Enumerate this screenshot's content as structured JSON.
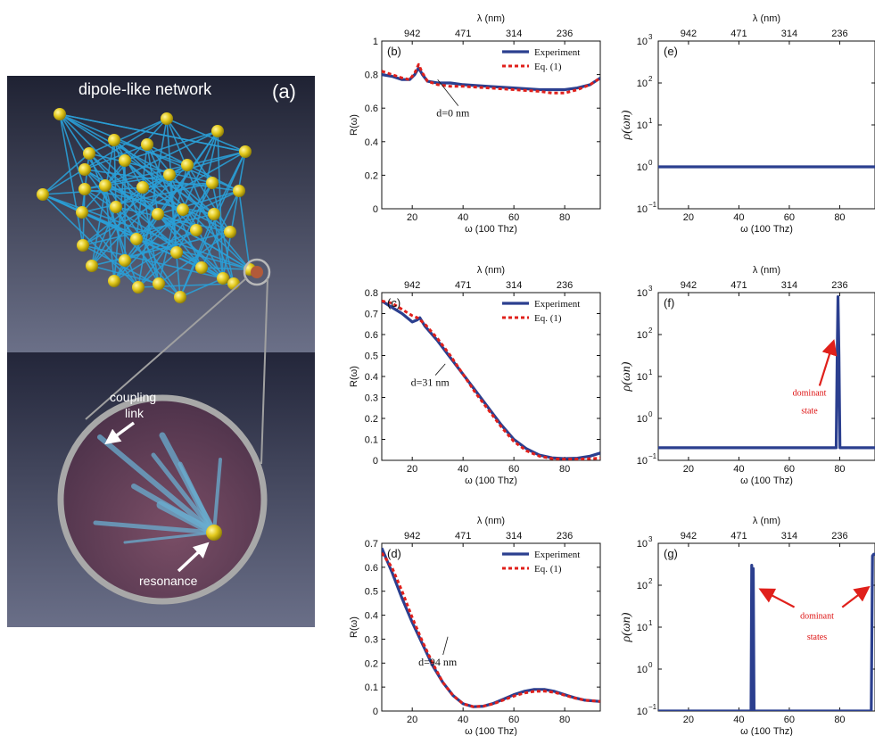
{
  "network_panel": {
    "title": "dipole-like network",
    "label": "(a)",
    "link_label_1": "coupling",
    "link_label_2": "link",
    "resonance_label": "resonance"
  },
  "colors": {
    "experiment": "#2b3f8f",
    "equation": "#e0201b",
    "arrow": "#e0201b",
    "node": "#d9c21a",
    "link": "#2a9fd6"
  },
  "chart_data": [
    {
      "id": "b",
      "type": "line",
      "panel_label": "(b)",
      "xlabel": "ω (100 Thz)",
      "ylabel": "R(ω)",
      "top_axis_label": "λ (nm)",
      "top_ticks": [
        {
          "x": 20,
          "label": "942"
        },
        {
          "x": 40,
          "label": "471"
        },
        {
          "x": 60,
          "label": "314"
        },
        {
          "x": 80,
          "label": "236"
        }
      ],
      "xlim": [
        8,
        94
      ],
      "ylim": [
        0,
        1
      ],
      "xticks": [
        20,
        40,
        60,
        80
      ],
      "yticks": [
        0,
        0.2,
        0.4,
        0.6,
        0.8,
        1
      ],
      "ytick_labels": [
        "0",
        "0.2",
        "0.4",
        "0.6",
        "0.8",
        "1"
      ],
      "legend": {
        "experiment": "Experiment",
        "equation": "Eq. (1)"
      },
      "annotation": {
        "text": "d=0 nm",
        "x": 36,
        "y": 0.55,
        "ax": 30,
        "ay": 0.77
      },
      "series": [
        {
          "name": "Experiment",
          "style": "solid",
          "x": [
            8,
            12,
            16,
            19,
            21,
            22.5,
            24,
            26,
            30,
            35,
            40,
            50,
            60,
            70,
            75,
            80,
            85,
            90,
            94
          ],
          "y": [
            0.8,
            0.79,
            0.77,
            0.77,
            0.8,
            0.84,
            0.8,
            0.76,
            0.75,
            0.75,
            0.74,
            0.73,
            0.72,
            0.71,
            0.71,
            0.71,
            0.72,
            0.74,
            0.78
          ]
        },
        {
          "name": "Eq. (1)",
          "style": "dashed",
          "x": [
            8,
            12,
            16,
            19,
            21,
            22.5,
            24,
            26,
            30,
            35,
            40,
            50,
            60,
            70,
            75,
            80,
            85,
            90,
            94
          ],
          "y": [
            0.82,
            0.8,
            0.78,
            0.77,
            0.81,
            0.86,
            0.81,
            0.76,
            0.74,
            0.73,
            0.73,
            0.72,
            0.71,
            0.7,
            0.69,
            0.69,
            0.71,
            0.74,
            0.78
          ]
        }
      ]
    },
    {
      "id": "e",
      "type": "line",
      "panel_label": "(e)",
      "xlabel": "ω (100 Thz)",
      "ylabel": "ρ(ωn)",
      "top_axis_label": "λ (nm)",
      "top_ticks": [
        {
          "x": 20,
          "label": "942"
        },
        {
          "x": 40,
          "label": "471"
        },
        {
          "x": 60,
          "label": "314"
        },
        {
          "x": 80,
          "label": "236"
        }
      ],
      "xlim": [
        8,
        94
      ],
      "ylim": [
        0.1,
        1000
      ],
      "yscale": "log",
      "xticks": [
        20,
        40,
        60,
        80
      ],
      "yticks": [
        0.1,
        1,
        10,
        100,
        1000
      ],
      "ytick_labels": [
        "10",
        "10",
        "10",
        "10",
        "10"
      ],
      "ytick_exps": [
        "−1",
        "0",
        "1",
        "2",
        "3"
      ],
      "series": [
        {
          "name": "",
          "style": "solid",
          "x": [
            8,
            94
          ],
          "y": [
            1,
            1
          ]
        }
      ]
    },
    {
      "id": "c",
      "type": "line",
      "panel_label": "(c)",
      "xlabel": "ω (100 Thz)",
      "ylabel": "R(ω)",
      "top_axis_label": "λ (nm)",
      "top_ticks": [
        {
          "x": 20,
          "label": "942"
        },
        {
          "x": 40,
          "label": "471"
        },
        {
          "x": 60,
          "label": "314"
        },
        {
          "x": 80,
          "label": "236"
        }
      ],
      "xlim": [
        8,
        94
      ],
      "ylim": [
        0,
        0.8
      ],
      "xticks": [
        20,
        40,
        60,
        80
      ],
      "yticks": [
        0,
        0.1,
        0.2,
        0.3,
        0.4,
        0.5,
        0.6,
        0.7,
        0.8
      ],
      "ytick_labels": [
        "0",
        "0.1",
        "0.2",
        "0.3",
        "0.4",
        "0.5",
        "0.6",
        "0.7",
        "0.8"
      ],
      "legend": {
        "experiment": "Experiment",
        "equation": "Eq. (1)"
      },
      "annotation": {
        "text": "d=31 nm",
        "x": 27,
        "y": 0.355,
        "ax": 33,
        "ay": 0.46
      },
      "series": [
        {
          "name": "Experiment",
          "style": "solid",
          "x": [
            8,
            12,
            16,
            20,
            22,
            23,
            25,
            30,
            35,
            40,
            45,
            50,
            55,
            60,
            65,
            70,
            75,
            80,
            85,
            90,
            94
          ],
          "y": [
            0.76,
            0.73,
            0.7,
            0.66,
            0.67,
            0.68,
            0.64,
            0.57,
            0.49,
            0.41,
            0.33,
            0.25,
            0.17,
            0.1,
            0.055,
            0.025,
            0.012,
            0.008,
            0.01,
            0.02,
            0.035
          ]
        },
        {
          "name": "Eq. (1)",
          "style": "dashed",
          "x": [
            8,
            12,
            16,
            20,
            22,
            23,
            25,
            30,
            35,
            40,
            45,
            50,
            55,
            60,
            65,
            70,
            75,
            80,
            85,
            90,
            94
          ],
          "y": [
            0.76,
            0.75,
            0.72,
            0.69,
            0.68,
            0.67,
            0.65,
            0.58,
            0.5,
            0.41,
            0.32,
            0.24,
            0.16,
            0.09,
            0.045,
            0.02,
            0.008,
            0.005,
            0.006,
            0.008,
            0.01
          ]
        }
      ]
    },
    {
      "id": "f",
      "type": "line",
      "panel_label": "(f)",
      "xlabel": "ω (100 Thz)",
      "ylabel": "ρ(ωn)",
      "top_axis_label": "λ (nm)",
      "top_ticks": [
        {
          "x": 20,
          "label": "942"
        },
        {
          "x": 40,
          "label": "471"
        },
        {
          "x": 60,
          "label": "314"
        },
        {
          "x": 80,
          "label": "236"
        }
      ],
      "xlim": [
        8,
        94
      ],
      "ylim": [
        0.1,
        1000
      ],
      "yscale": "log",
      "xticks": [
        20,
        40,
        60,
        80
      ],
      "yticks": [
        0.1,
        1,
        10,
        100,
        1000
      ],
      "ytick_labels": [
        "10",
        "10",
        "10",
        "10",
        "10"
      ],
      "ytick_exps": [
        "−1",
        "0",
        "1",
        "2",
        "3"
      ],
      "annotations": [
        {
          "text": "dominant",
          "x": 68,
          "y": 3.5
        },
        {
          "text": "state",
          "x": 68,
          "y": 1.3
        }
      ],
      "series": [
        {
          "name": "",
          "style": "solid",
          "x": [
            8,
            78.6,
            79,
            79.3,
            79.7,
            80.1,
            94
          ],
          "y": [
            0.2,
            0.2,
            30,
            800,
            30,
            0.2,
            0.2
          ]
        }
      ]
    },
    {
      "id": "d",
      "type": "line",
      "panel_label": "(d)",
      "xlabel": "ω (100 Thz)",
      "ylabel": "R(ω)",
      "top_axis_label": "λ (nm)",
      "top_ticks": [
        {
          "x": 20,
          "label": "942"
        },
        {
          "x": 40,
          "label": "471"
        },
        {
          "x": 60,
          "label": "314"
        },
        {
          "x": 80,
          "label": "236"
        }
      ],
      "xlim": [
        8,
        94
      ],
      "ylim": [
        0,
        0.7
      ],
      "xticks": [
        20,
        40,
        60,
        80
      ],
      "yticks": [
        0,
        0.1,
        0.2,
        0.3,
        0.4,
        0.5,
        0.6,
        0.7
      ],
      "ytick_labels": [
        "0",
        "0.1",
        "0.2",
        "0.3",
        "0.4",
        "0.5",
        "0.6",
        "0.7"
      ],
      "legend": {
        "experiment": "Experiment",
        "equation": "Eq. (1)"
      },
      "annotation": {
        "text": "d=94 nm",
        "x": 30,
        "y": 0.19,
        "ax": 34,
        "ay": 0.31
      },
      "series": [
        {
          "name": "Experiment",
          "style": "solid",
          "x": [
            8,
            12,
            16,
            20,
            24,
            28,
            32,
            36,
            40,
            44,
            48,
            52,
            56,
            60,
            64,
            68,
            72,
            76,
            80,
            84,
            88,
            94
          ],
          "y": [
            0.68,
            0.58,
            0.47,
            0.37,
            0.28,
            0.19,
            0.12,
            0.065,
            0.03,
            0.018,
            0.02,
            0.032,
            0.05,
            0.068,
            0.082,
            0.09,
            0.09,
            0.082,
            0.068,
            0.055,
            0.045,
            0.04
          ]
        },
        {
          "name": "Eq. (1)",
          "style": "dashed",
          "x": [
            8,
            12,
            16,
            20,
            24,
            28,
            32,
            36,
            40,
            44,
            48,
            52,
            56,
            60,
            64,
            68,
            72,
            76,
            80,
            84,
            88,
            94
          ],
          "y": [
            0.66,
            0.6,
            0.5,
            0.39,
            0.29,
            0.2,
            0.12,
            0.065,
            0.03,
            0.018,
            0.02,
            0.03,
            0.046,
            0.062,
            0.075,
            0.082,
            0.083,
            0.078,
            0.066,
            0.054,
            0.045,
            0.04
          ]
        }
      ]
    },
    {
      "id": "g",
      "type": "line",
      "panel_label": "(g)",
      "xlabel": "ω (100 Thz)",
      "ylabel": "ρ(ωn)",
      "top_axis_label": "λ (nm)",
      "top_ticks": [
        {
          "x": 20,
          "label": "942"
        },
        {
          "x": 40,
          "label": "471"
        },
        {
          "x": 60,
          "label": "314"
        },
        {
          "x": 80,
          "label": "236"
        }
      ],
      "xlim": [
        8,
        94
      ],
      "ylim": [
        0.1,
        1000
      ],
      "yscale": "log",
      "xticks": [
        20,
        40,
        60,
        80
      ],
      "yticks": [
        0.1,
        1,
        10,
        100,
        1000
      ],
      "ytick_labels": [
        "10",
        "10",
        "10",
        "10",
        "10"
      ],
      "ytick_exps": [
        "−1",
        "0",
        "1",
        "2",
        "3"
      ],
      "annotations": [
        {
          "text": "dominant",
          "x": 71,
          "y": 16
        },
        {
          "text": "states",
          "x": 71,
          "y": 5
        }
      ],
      "series": [
        {
          "name": "",
          "style": "solid",
          "x": [
            8,
            44.8,
            45.1,
            45.4,
            45.7,
            46,
            46.3,
            92.5,
            93,
            93.5,
            94
          ],
          "y": [
            0.1,
            0.1,
            300,
            0.1,
            250,
            0.1,
            0.1,
            0.1,
            500,
            550,
            550
          ]
        }
      ]
    }
  ]
}
